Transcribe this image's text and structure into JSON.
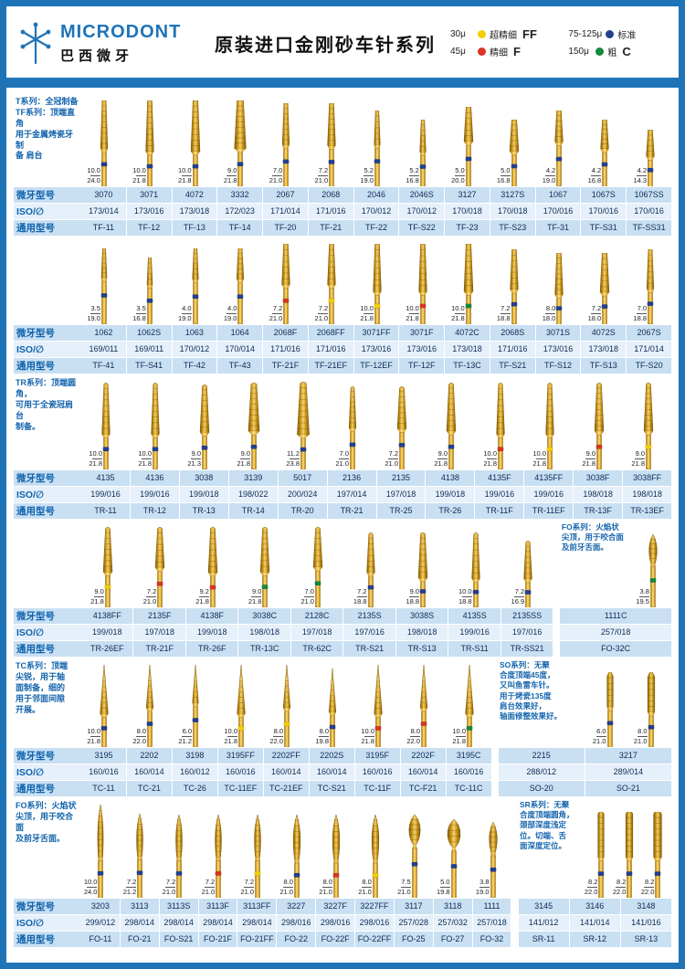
{
  "header": {
    "brand": "MICRODONT",
    "brand_sub": "巴西微牙",
    "title": "原装进口金刚砂车针系列",
    "legend": [
      {
        "size": "30μ",
        "label": "超精细",
        "code": "FF",
        "color": "#f2cf00"
      },
      {
        "size": "75-125μ",
        "label": "标准",
        "code": "",
        "color": "#23408f"
      },
      {
        "size": "45μ",
        "label": "精细",
        "code": "F",
        "color": "#d93425"
      },
      {
        "size": "150μ",
        "label": "粗",
        "code": "C",
        "color": "#14893c"
      }
    ]
  },
  "row_headers": {
    "model": "微牙型号",
    "iso": "ISO/∅",
    "universal": "通用型号"
  },
  "grit_colors": {
    "std": "#23408f",
    "f": "#d93425",
    "ff": "#f2cf00",
    "c": "#14893c"
  },
  "sections": [
    {
      "id": "t-tf",
      "note": "T系列：全冠制备\nTF系列：顶端直角\n用于金属烤瓷牙制\n备 肩台",
      "shape": "taper",
      "burs": [
        {
          "model": "3070",
          "iso": "173/014",
          "universal": "TF-11",
          "dim_top": "10.0",
          "dim_bottom": "24.0",
          "grit": "std"
        },
        {
          "model": "3071",
          "iso": "173/016",
          "universal": "TF-12",
          "dim_top": "10.0",
          "dim_bottom": "21.8",
          "grit": "std"
        },
        {
          "model": "4072",
          "iso": "173/018",
          "universal": "TF-13",
          "dim_top": "10.0",
          "dim_bottom": "21.8",
          "grit": "std"
        },
        {
          "model": "3332",
          "iso": "172/023",
          "universal": "TF-14",
          "dim_top": "9.0",
          "dim_bottom": "21.8",
          "grit": "std"
        },
        {
          "model": "2067",
          "iso": "171/014",
          "universal": "TF-20",
          "dim_top": "7.0",
          "dim_bottom": "21.0",
          "grit": "std"
        },
        {
          "model": "2068",
          "iso": "171/016",
          "universal": "TF-21",
          "dim_top": "7.2",
          "dim_bottom": "21.0",
          "grit": "std"
        },
        {
          "model": "2046",
          "iso": "170/012",
          "universal": "TF-22",
          "dim_top": "5.2",
          "dim_bottom": "19.0",
          "grit": "std"
        },
        {
          "model": "2046S",
          "iso": "170/012",
          "universal": "TF-S22",
          "dim_top": "5.2",
          "dim_bottom": "16.8",
          "grit": "std"
        },
        {
          "model": "3127",
          "iso": "170/018",
          "universal": "TF-23",
          "dim_top": "5.0",
          "dim_bottom": "20.0",
          "grit": "std"
        },
        {
          "model": "3127S",
          "iso": "170/018",
          "universal": "TF-S23",
          "dim_top": "5.0",
          "dim_bottom": "16.8",
          "grit": "std"
        },
        {
          "model": "1067",
          "iso": "170/016",
          "universal": "TF-31",
          "dim_top": "4.2",
          "dim_bottom": "19.0",
          "grit": "std"
        },
        {
          "model": "1067S",
          "iso": "170/016",
          "universal": "TF-S31",
          "dim_top": "4.2",
          "dim_bottom": "16.8",
          "grit": "std"
        },
        {
          "model": "1067SS",
          "iso": "170/016",
          "universal": "TF-SS31",
          "dim_top": "4.2",
          "dim_bottom": "14.3",
          "grit": "std"
        }
      ]
    },
    {
      "id": "tf-2",
      "note": "",
      "shape": "taper",
      "burs": [
        {
          "model": "1062",
          "iso": "169/011",
          "universal": "TF-41",
          "dim_top": "3.5",
          "dim_bottom": "19.0",
          "grit": "std"
        },
        {
          "model": "1062S",
          "iso": "169/011",
          "universal": "TF-S41",
          "dim_top": "3.5",
          "dim_bottom": "16.8",
          "grit": "std"
        },
        {
          "model": "1063",
          "iso": "170/012",
          "universal": "TF-42",
          "dim_top": "4.0",
          "dim_bottom": "19.0",
          "grit": "std"
        },
        {
          "model": "1064",
          "iso": "170/014",
          "universal": "TF-43",
          "dim_top": "4.0",
          "dim_bottom": "19.0",
          "grit": "std"
        },
        {
          "model": "2068F",
          "iso": "171/016",
          "universal": "TF-21F",
          "dim_top": "7.2",
          "dim_bottom": "21.0",
          "grit": "f"
        },
        {
          "model": "2068FF",
          "iso": "171/016",
          "universal": "TF-21EF",
          "dim_top": "7.2",
          "dim_bottom": "21.0",
          "grit": "ff"
        },
        {
          "model": "3071FF",
          "iso": "173/016",
          "universal": "TF-12EF",
          "dim_top": "10.0",
          "dim_bottom": "21.8",
          "grit": "ff"
        },
        {
          "model": "3071F",
          "iso": "173/016",
          "universal": "TF-12F",
          "dim_top": "10.0",
          "dim_bottom": "21.8",
          "grit": "f"
        },
        {
          "model": "4072C",
          "iso": "173/018",
          "universal": "TF-13C",
          "dim_top": "10.0",
          "dim_bottom": "21.8",
          "grit": "c"
        },
        {
          "model": "2068S",
          "iso": "171/016",
          "universal": "TF-S21",
          "dim_top": "7.2",
          "dim_bottom": "18.8",
          "grit": "std"
        },
        {
          "model": "3071S",
          "iso": "173/016",
          "universal": "TF-S12",
          "dim_top": "8.0",
          "dim_bottom": "18.0",
          "grit": "std"
        },
        {
          "model": "4072S",
          "iso": "173/018",
          "universal": "TF-S13",
          "dim_top": "7.2",
          "dim_bottom": "18.0",
          "grit": "std"
        },
        {
          "model": "2067S",
          "iso": "171/014",
          "universal": "TF-S20",
          "dim_top": "7.0",
          "dim_bottom": "18.8",
          "grit": "std"
        }
      ]
    },
    {
      "id": "tr",
      "note": "TR系列：顶端圆角，\n可用于全瓷冠肩台\n制备。",
      "shape": "taper-round",
      "burs": [
        {
          "model": "4135",
          "iso": "199/016",
          "universal": "TR-11",
          "dim_top": "10.0",
          "dim_bottom": "21.8",
          "grit": "std"
        },
        {
          "model": "4136",
          "iso": "199/016",
          "universal": "TR-12",
          "dim_top": "10.0",
          "dim_bottom": "21.8",
          "grit": "std"
        },
        {
          "model": "3038",
          "iso": "199/018",
          "universal": "TR-13",
          "dim_top": "9.0",
          "dim_bottom": "21.3",
          "grit": "std"
        },
        {
          "model": "3139",
          "iso": "198/022",
          "universal": "TR-14",
          "dim_top": "9.0",
          "dim_bottom": "21.8",
          "grit": "std"
        },
        {
          "model": "5017",
          "iso": "200/024",
          "universal": "TR-20",
          "dim_top": "11.2",
          "dim_bottom": "23.8",
          "grit": "std"
        },
        {
          "model": "2136",
          "iso": "197/014",
          "universal": "TR-21",
          "dim_top": "7.0",
          "dim_bottom": "21.0",
          "grit": "std"
        },
        {
          "model": "2135",
          "iso": "197/018",
          "universal": "TR-25",
          "dim_top": "7.2",
          "dim_bottom": "21.0",
          "grit": "std"
        },
        {
          "model": "4138",
          "iso": "199/018",
          "universal": "TR-26",
          "dim_top": "9.0",
          "dim_bottom": "21.8",
          "grit": "std"
        },
        {
          "model": "4135F",
          "iso": "199/016",
          "universal": "TR-11F",
          "dim_top": "10.0",
          "dim_bottom": "21.8",
          "grit": "f"
        },
        {
          "model": "4135FF",
          "iso": "199/016",
          "universal": "TR-11EF",
          "dim_top": "10.0",
          "dim_bottom": "21.8",
          "grit": "ff"
        },
        {
          "model": "3038F",
          "iso": "198/018",
          "universal": "TR-13F",
          "dim_top": "9.0",
          "dim_bottom": "21.8",
          "grit": "f"
        },
        {
          "model": "3038FF",
          "iso": "198/018",
          "universal": "TR-13EF",
          "dim_top": "9.0",
          "dim_bottom": "21.8",
          "grit": "ff"
        }
      ]
    },
    {
      "id": "tr-2",
      "note": "",
      "shape": "taper-round",
      "burs": [
        {
          "model": "4138FF",
          "iso": "199/018",
          "universal": "TR-26EF",
          "dim_top": "9.0",
          "dim_bottom": "21.8",
          "grit": "ff"
        },
        {
          "model": "2135F",
          "iso": "197/018",
          "universal": "TR-21F",
          "dim_top": "7.2",
          "dim_bottom": "21.0",
          "grit": "f"
        },
        {
          "model": "4138F",
          "iso": "199/018",
          "universal": "TR-26F",
          "dim_top": "9.2",
          "dim_bottom": "21.8",
          "grit": "f"
        },
        {
          "model": "3038C",
          "iso": "198/018",
          "universal": "TR-13C",
          "dim_top": "9.0",
          "dim_bottom": "21.8",
          "grit": "c"
        },
        {
          "model": "2128C",
          "iso": "197/018",
          "universal": "TR-62C",
          "dim_top": "7.0",
          "dim_bottom": "21.0",
          "grit": "c"
        },
        {
          "model": "2135S",
          "iso": "197/016",
          "universal": "TR-S21",
          "dim_top": "7.2",
          "dim_bottom": "18.8",
          "grit": "std"
        },
        {
          "model": "3038S",
          "iso": "198/018",
          "universal": "TR-S13",
          "dim_top": "9.0",
          "dim_bottom": "18.8",
          "grit": "std"
        },
        {
          "model": "4135S",
          "iso": "199/016",
          "universal": "TR-S11",
          "dim_top": "10.0",
          "dim_bottom": "18.8",
          "grit": "std"
        },
        {
          "model": "2135SS",
          "iso": "197/016",
          "universal": "TR-SS21",
          "dim_top": "7.2",
          "dim_bottom": "16.9",
          "grit": "std"
        }
      ],
      "right": {
        "note": "FO系列：火焰状\n尖顶，用于咬合面\n及前牙舌面。",
        "shape": "flame",
        "burs": [
          {
            "model": "1111C",
            "iso": "257/018",
            "universal": "FO-32C",
            "dim_top": "3.8",
            "dim_bottom": "19.5",
            "grit": "c"
          }
        ]
      }
    },
    {
      "id": "tc",
      "note": "TC系列：顶端\n尖锐，用于轴\n面制备，细的\n用于邻面间隙\n开展。",
      "shape": "needle",
      "burs": [
        {
          "model": "3195",
          "iso": "160/016",
          "universal": "TC-11",
          "dim_top": "10.0",
          "dim_bottom": "21.8",
          "grit": "std"
        },
        {
          "model": "2202",
          "iso": "160/014",
          "universal": "TC-21",
          "dim_top": "8.0",
          "dim_bottom": "22.0",
          "grit": "std"
        },
        {
          "model": "3198",
          "iso": "160/012",
          "universal": "TC-26",
          "dim_top": "6.0",
          "dim_bottom": "21.2",
          "grit": "std"
        },
        {
          "model": "3195FF",
          "iso": "160/016",
          "universal": "TC-11EF",
          "dim_top": "10.0",
          "dim_bottom": "21.8",
          "grit": "ff"
        },
        {
          "model": "2202FF",
          "iso": "160/014",
          "universal": "TC-21EF",
          "dim_top": "8.0",
          "dim_bottom": "22.0",
          "grit": "ff"
        },
        {
          "model": "2202S",
          "iso": "160/014",
          "universal": "TC-S21",
          "dim_top": "8.0",
          "dim_bottom": "19.8",
          "grit": "std"
        },
        {
          "model": "3195F",
          "iso": "160/016",
          "universal": "TC-11F",
          "dim_top": "10.0",
          "dim_bottom": "21.8",
          "grit": "f"
        },
        {
          "model": "2202F",
          "iso": "160/014",
          "universal": "TC-F21",
          "dim_top": "8.0",
          "dim_bottom": "22.0",
          "grit": "f"
        },
        {
          "model": "3195C",
          "iso": "160/016",
          "universal": "TC-11C",
          "dim_top": "10.0",
          "dim_bottom": "21.8",
          "grit": "c"
        }
      ],
      "right": {
        "note": "SO系列：无聚\n合度顶端45度，\n又叫鱼雷车针。\n用于烤瓷135度\n肩台效果好，\n轴面修整效果好。",
        "shape": "torpedo",
        "burs": [
          {
            "model": "2215",
            "iso": "288/012",
            "universal": "SO-20",
            "dim_top": "6.0",
            "dim_bottom": "21.0",
            "grit": "std"
          },
          {
            "model": "3217",
            "iso": "289/014",
            "universal": "SO-21",
            "dim_top": "8.0",
            "dim_bottom": "21.0",
            "grit": "std"
          }
        ]
      }
    },
    {
      "id": "fo",
      "note": "FO系列：火焰状\n尖顶，用于咬合面\n及前牙舌面。",
      "shape": "flame",
      "burs": [
        {
          "model": "3203",
          "iso": "299/012",
          "universal": "FO-11",
          "dim_top": "10.0",
          "dim_bottom": "24.0",
          "grit": "std"
        },
        {
          "model": "3113",
          "iso": "298/014",
          "universal": "FO-21",
          "dim_top": "7.2",
          "dim_bottom": "21.2",
          "grit": "std"
        },
        {
          "model": "3113S",
          "iso": "298/014",
          "universal": "FO-S21",
          "dim_top": "7.2",
          "dim_bottom": "21.0",
          "grit": "std"
        },
        {
          "model": "3113F",
          "iso": "298/014",
          "universal": "FO-21F",
          "dim_top": "7.2",
          "dim_bottom": "21.0",
          "grit": "f"
        },
        {
          "model": "3113FF",
          "iso": "298/014",
          "universal": "FO-21FF",
          "dim_top": "7.2",
          "dim_bottom": "21.0",
          "grit": "ff"
        },
        {
          "model": "3227",
          "iso": "298/016",
          "universal": "FO-22",
          "dim_top": "8.0",
          "dim_bottom": "21.0",
          "grit": "std"
        },
        {
          "model": "3227F",
          "iso": "298/016",
          "universal": "FO-22F",
          "dim_top": "8.0",
          "dim_bottom": "21.0",
          "grit": "f"
        },
        {
          "model": "3227FF",
          "iso": "298/016",
          "universal": "FO-22FF",
          "dim_top": "8.0",
          "dim_bottom": "21.0",
          "grit": "ff"
        },
        {
          "model": "3117",
          "iso": "257/028",
          "universal": "FO-25",
          "dim_top": "7.5",
          "dim_bottom": "21.0",
          "grit": "std",
          "shape": "egg"
        },
        {
          "model": "3118",
          "iso": "257/032",
          "universal": "FO-27",
          "dim_top": "5.0",
          "dim_bottom": "19.8",
          "grit": "std",
          "shape": "egg"
        },
        {
          "model": "1111",
          "iso": "257/018",
          "universal": "FO-32",
          "dim_top": "3.8",
          "dim_bottom": "19.0",
          "grit": "std"
        }
      ],
      "right": {
        "note": "SR系列：无聚\n合度顶端圆角，\n颈部深度浅定\n位。切端、舌\n面深度定位。",
        "shape": "round",
        "burs": [
          {
            "model": "3145",
            "iso": "141/012",
            "universal": "SR-11",
            "dim_top": "8.2",
            "dim_bottom": "22.0",
            "grit": "std"
          },
          {
            "model": "3146",
            "iso": "141/014",
            "universal": "SR-12",
            "dim_top": "8.2",
            "dim_bottom": "22.0",
            "grit": "std"
          },
          {
            "model": "3148",
            "iso": "141/016",
            "universal": "SR-13",
            "dim_top": "8.2",
            "dim_bottom": "22.0",
            "grit": "std"
          }
        ]
      }
    }
  ]
}
